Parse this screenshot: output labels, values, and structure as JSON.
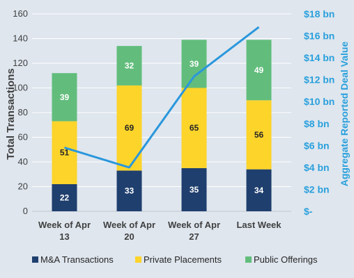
{
  "chart_data": {
    "type": "bar",
    "stacked": true,
    "categories": [
      [
        "Week of Apr",
        "13"
      ],
      [
        "Week of Apr",
        "20"
      ],
      [
        "Week of Apr",
        "27"
      ],
      [
        "Last Week"
      ]
    ],
    "series": [
      {
        "name": "M&A Transactions",
        "values": [
          22,
          33,
          35,
          34
        ],
        "color": "#1f3f6e"
      },
      {
        "name": "Private Placements",
        "values": [
          51,
          69,
          65,
          56
        ],
        "color": "#fcd42a"
      },
      {
        "name": "Public Offerings",
        "values": [
          39,
          32,
          39,
          49
        ],
        "color": "#62bd7c"
      }
    ],
    "line_series": {
      "values": [
        5.8,
        4.0,
        12.3,
        16.8
      ],
      "axis": "right",
      "color": "#2a97dc"
    },
    "ylabel": "Total Transactions",
    "ylim": [
      0,
      160
    ],
    "yticks": [
      0,
      20,
      40,
      60,
      80,
      100,
      120,
      140,
      160
    ],
    "y2label": "Aggregate Reported Deal Value",
    "y2lim": [
      0,
      18
    ],
    "y2ticks": [
      "$-",
      "$2 bn",
      "$4 bn",
      "$6 bn",
      "$8 bn",
      "$10 bn",
      "$12 bn",
      "$14 bn",
      "$16 bn",
      "$18 bn"
    ],
    "grid": true,
    "legend": "bottom",
    "background": "#dfe6ee"
  }
}
